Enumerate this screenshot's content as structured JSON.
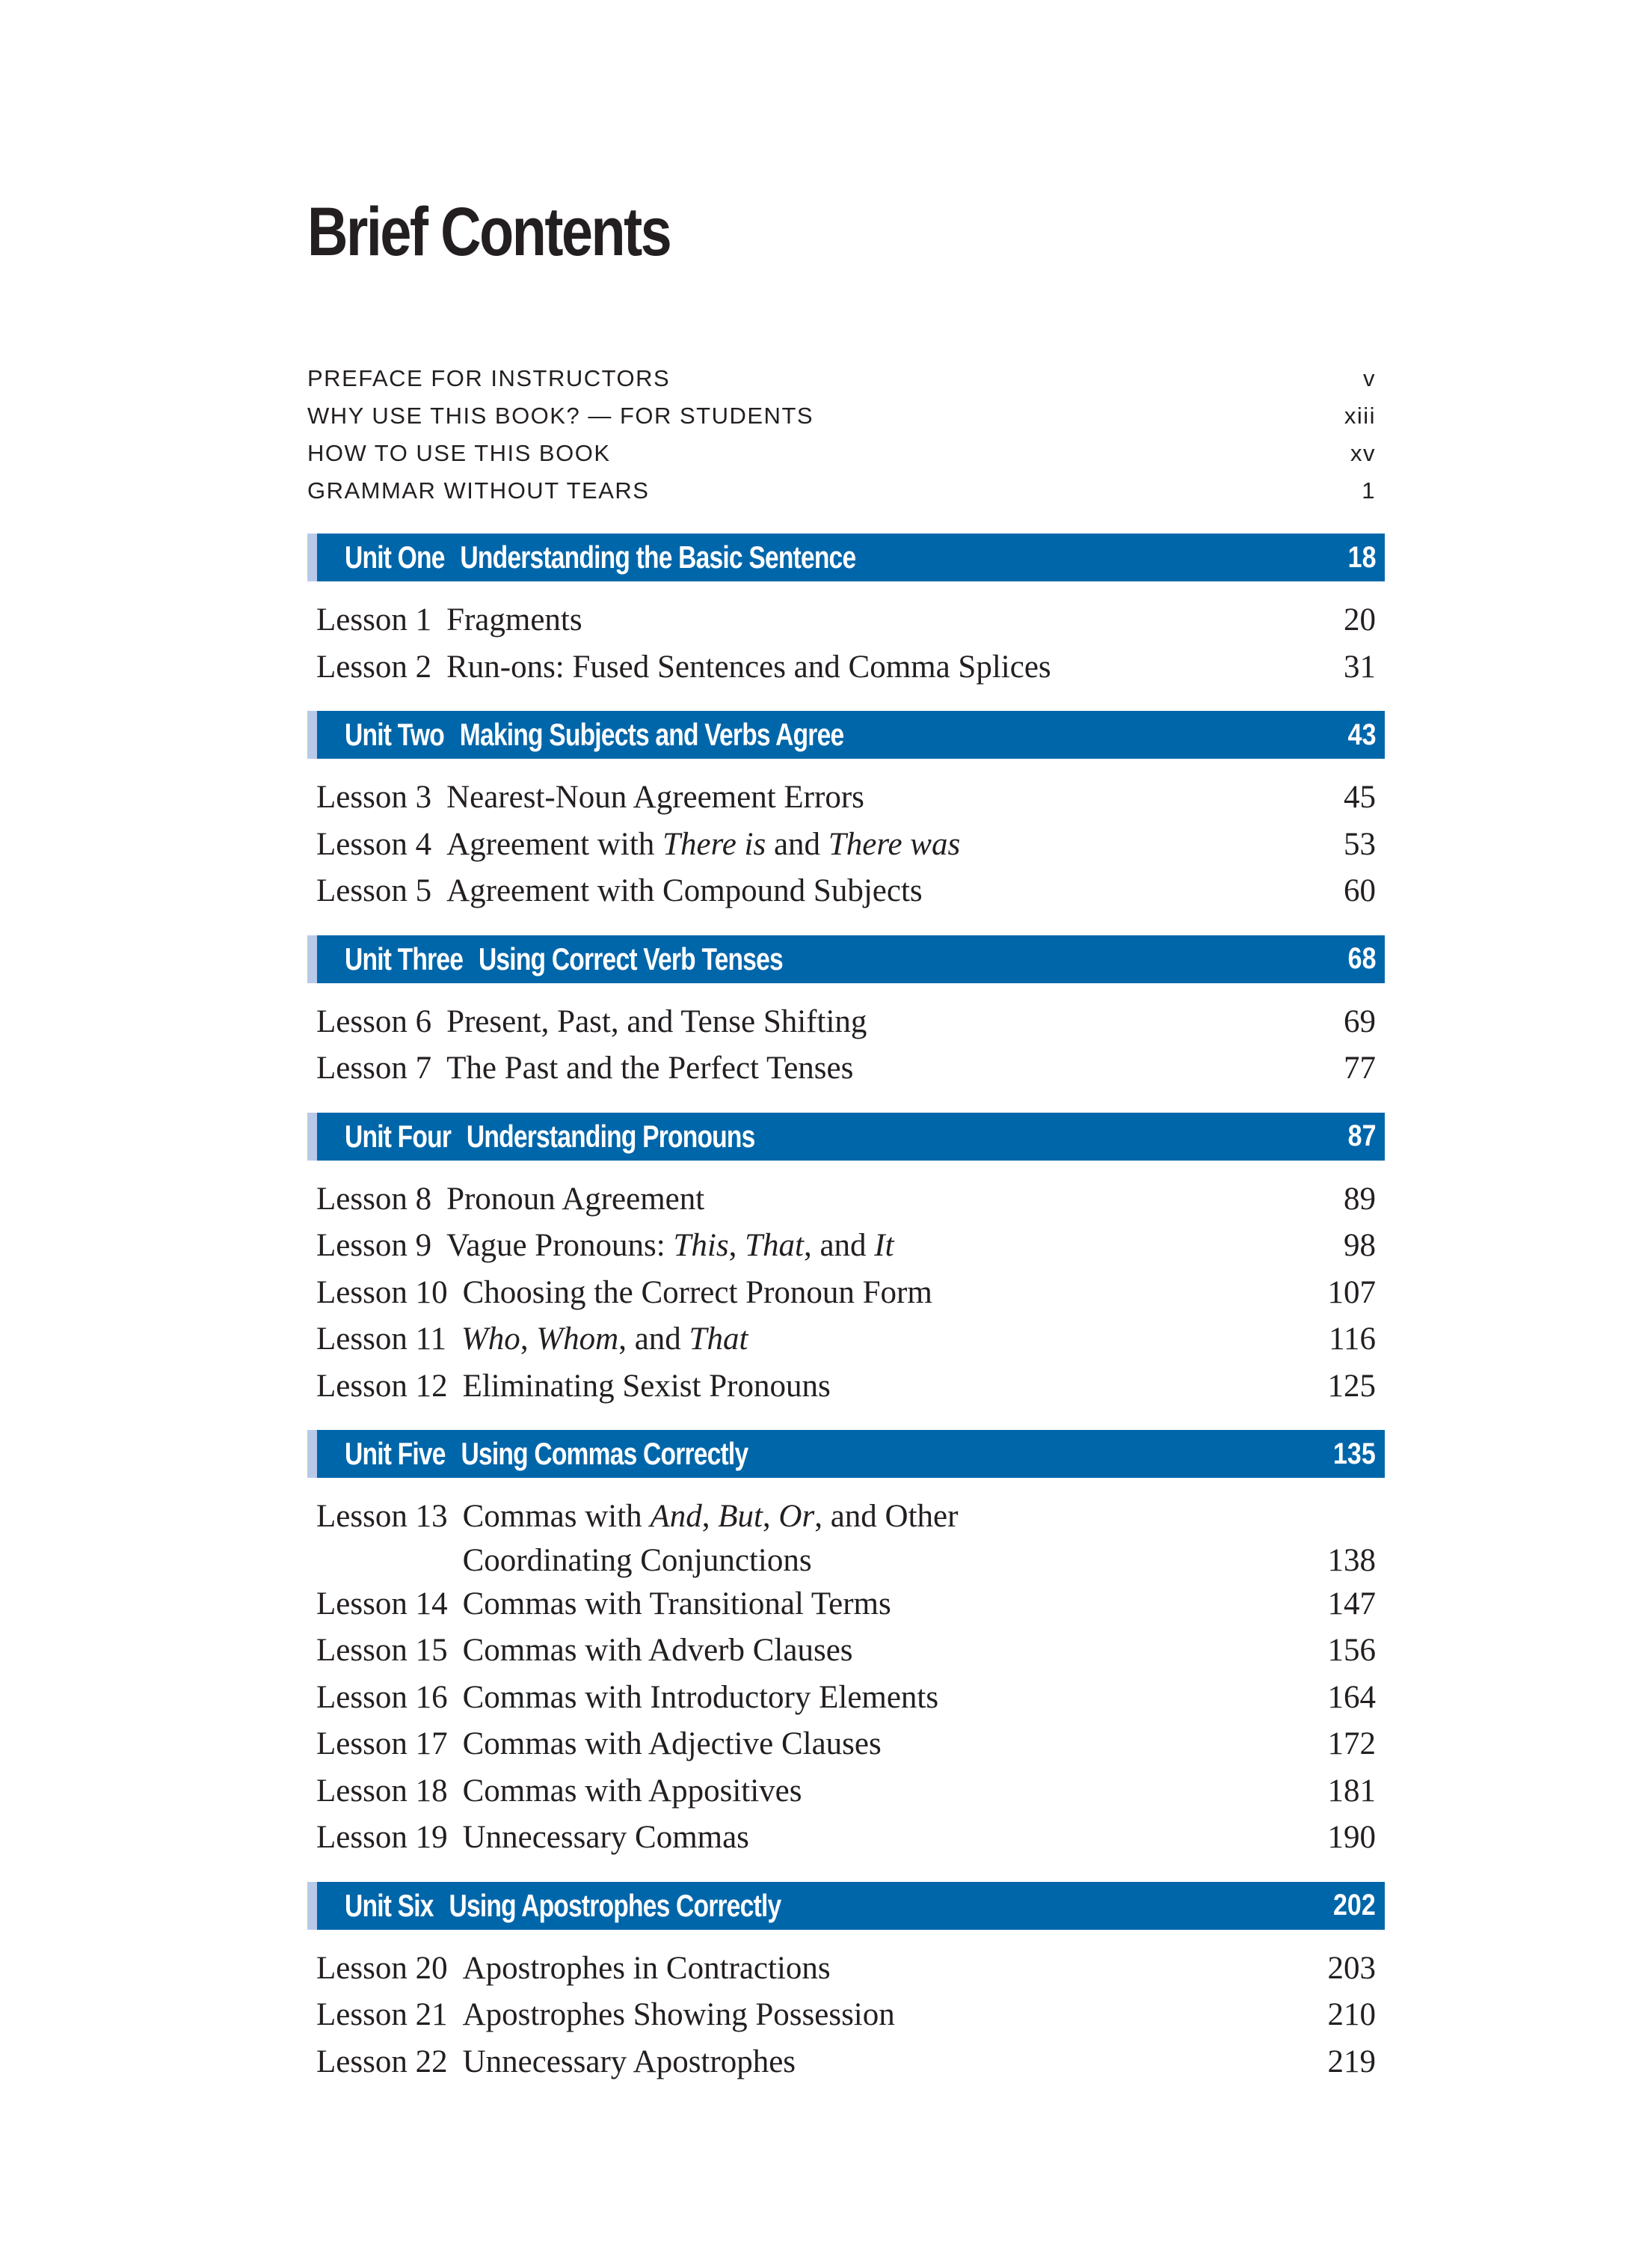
{
  "title": "Brief Contents",
  "front_matter": [
    {
      "label": "PREFACE FOR INSTRUCTORS",
      "page": "v"
    },
    {
      "label": "WHY USE THIS BOOK? — FOR STUDENTS",
      "page": "xiii"
    },
    {
      "label": "HOW TO USE THIS BOOK",
      "page": "xv"
    },
    {
      "label": "GRAMMAR WITHOUT TEARS",
      "page": "1"
    }
  ],
  "colors": {
    "unit_bar": "#0066aa",
    "unit_strip": "#b9c9e9",
    "text": "#231f20"
  },
  "units": [
    {
      "label": "Unit One",
      "title": "Understanding the Basic Sentence",
      "page": "18",
      "lessons": [
        {
          "label": "Lesson 1",
          "title": [
            {
              "t": "Fragments"
            }
          ],
          "page": "20"
        },
        {
          "label": "Lesson 2",
          "title": [
            {
              "t": "Run-ons: Fused Sentences and Comma Splices"
            }
          ],
          "page": "31"
        }
      ]
    },
    {
      "label": "Unit Two",
      "title": "Making Subjects and Verbs Agree",
      "page": "43",
      "lessons": [
        {
          "label": "Lesson 3",
          "title": [
            {
              "t": "Nearest-Noun Agreement Errors"
            }
          ],
          "page": "45"
        },
        {
          "label": "Lesson 4",
          "title": [
            {
              "t": "Agreement with "
            },
            {
              "t": "There is",
              "i": true
            },
            {
              "t": " and "
            },
            {
              "t": "There was",
              "i": true
            }
          ],
          "page": "53"
        },
        {
          "label": "Lesson 5",
          "title": [
            {
              "t": "Agreement with Compound Subjects"
            }
          ],
          "page": "60"
        }
      ]
    },
    {
      "label": "Unit Three",
      "title": "Using Correct Verb Tenses",
      "page": "68",
      "lessons": [
        {
          "label": "Lesson 6",
          "title": [
            {
              "t": "Present, Past, and Tense Shifting"
            }
          ],
          "page": "69"
        },
        {
          "label": "Lesson 7",
          "title": [
            {
              "t": "The Past and the Perfect Tenses"
            }
          ],
          "page": "77"
        }
      ]
    },
    {
      "label": "Unit Four",
      "title": "Understanding Pronouns",
      "page": "87",
      "lessons": [
        {
          "label": "Lesson 8",
          "title": [
            {
              "t": "Pronoun Agreement"
            }
          ],
          "page": "89"
        },
        {
          "label": "Lesson 9",
          "title": [
            {
              "t": "Vague Pronouns: "
            },
            {
              "t": "This",
              "i": true
            },
            {
              "t": ", "
            },
            {
              "t": "That",
              "i": true
            },
            {
              "t": ", and "
            },
            {
              "t": "It",
              "i": true
            }
          ],
          "page": "98"
        },
        {
          "label": "Lesson 10",
          "title": [
            {
              "t": "Choosing the Correct Pronoun Form"
            }
          ],
          "page": "107"
        },
        {
          "label": "Lesson 11",
          "title": [
            {
              "t": "Who",
              "i": true
            },
            {
              "t": ", "
            },
            {
              "t": "Whom",
              "i": true
            },
            {
              "t": ", and "
            },
            {
              "t": "That",
              "i": true
            }
          ],
          "page": "116"
        },
        {
          "label": "Lesson 12",
          "title": [
            {
              "t": "Eliminating Sexist Pronouns"
            }
          ],
          "page": "125"
        }
      ]
    },
    {
      "label": "Unit Five",
      "title": "Using Commas Correctly",
      "page": "135",
      "lessons": [
        {
          "label": "Lesson 13",
          "title": [
            {
              "t": "Commas with "
            },
            {
              "t": "And",
              "i": true
            },
            {
              "t": ", "
            },
            {
              "t": "But",
              "i": true
            },
            {
              "t": ", "
            },
            {
              "t": "Or",
              "i": true
            },
            {
              "t": ", and Other"
            }
          ],
          "continuation": "Coordinating Conjunctions",
          "page": "138"
        },
        {
          "label": "Lesson 14",
          "title": [
            {
              "t": "Commas with Transitional Terms"
            }
          ],
          "page": "147"
        },
        {
          "label": "Lesson 15",
          "title": [
            {
              "t": "Commas with Adverb Clauses"
            }
          ],
          "page": "156"
        },
        {
          "label": "Lesson 16",
          "title": [
            {
              "t": "Commas with Introductory Elements"
            }
          ],
          "page": "164"
        },
        {
          "label": "Lesson 17",
          "title": [
            {
              "t": "Commas with Adjective Clauses"
            }
          ],
          "page": "172"
        },
        {
          "label": "Lesson 18",
          "title": [
            {
              "t": "Commas with Appositives"
            }
          ],
          "page": "181"
        },
        {
          "label": "Lesson 19",
          "title": [
            {
              "t": "Unnecessary Commas"
            }
          ],
          "page": "190"
        }
      ]
    },
    {
      "label": "Unit Six",
      "title": "Using Apostrophes Correctly",
      "page": "202",
      "lessons": [
        {
          "label": "Lesson 20",
          "title": [
            {
              "t": "Apostrophes in Contractions"
            }
          ],
          "page": "203"
        },
        {
          "label": "Lesson 21",
          "title": [
            {
              "t": "Apostrophes Showing Possession"
            }
          ],
          "page": "210"
        },
        {
          "label": "Lesson 22",
          "title": [
            {
              "t": "Unnecessary Apostrophes"
            }
          ],
          "page": "219"
        }
      ]
    }
  ]
}
